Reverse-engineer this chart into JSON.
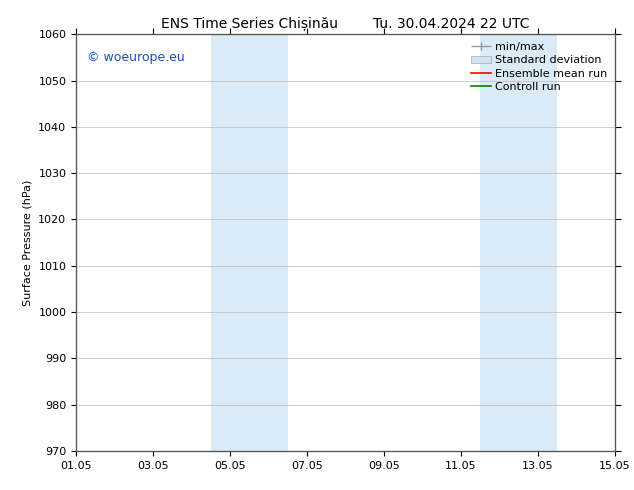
{
  "title_left": "ENS Time Series Chișinău",
  "title_right": "Tu. 30.04.2024 22 UTC",
  "ylabel": "Surface Pressure (hPa)",
  "ylim": [
    970,
    1060
  ],
  "yticks": [
    970,
    980,
    990,
    1000,
    1010,
    1020,
    1030,
    1040,
    1050,
    1060
  ],
  "xtick_labels": [
    "01.05",
    "03.05",
    "05.05",
    "07.05",
    "09.05",
    "11.05",
    "13.05",
    "15.05"
  ],
  "xtick_positions": [
    0,
    2,
    4,
    6,
    8,
    10,
    12,
    14
  ],
  "xlim": [
    0,
    14
  ],
  "shaded_bands": [
    {
      "x_start": 3.5,
      "x_end": 5.5,
      "color": "#daeaf7"
    },
    {
      "x_start": 10.5,
      "x_end": 12.5,
      "color": "#daeaf7"
    }
  ],
  "watermark_text": "© woeurope.eu",
  "watermark_color": "#1a4fcc",
  "legend_items": [
    {
      "label": "min/max",
      "color": "#aaaaaa"
    },
    {
      "label": "Standard deviation",
      "color": "#ccddee"
    },
    {
      "label": "Ensemble mean run",
      "color": "red"
    },
    {
      "label": "Controll run",
      "color": "green"
    }
  ],
  "bg_color": "#ffffff",
  "grid_color": "#bbbbbb",
  "font_size": 8,
  "title_font_size": 10,
  "watermark_font_size": 9
}
